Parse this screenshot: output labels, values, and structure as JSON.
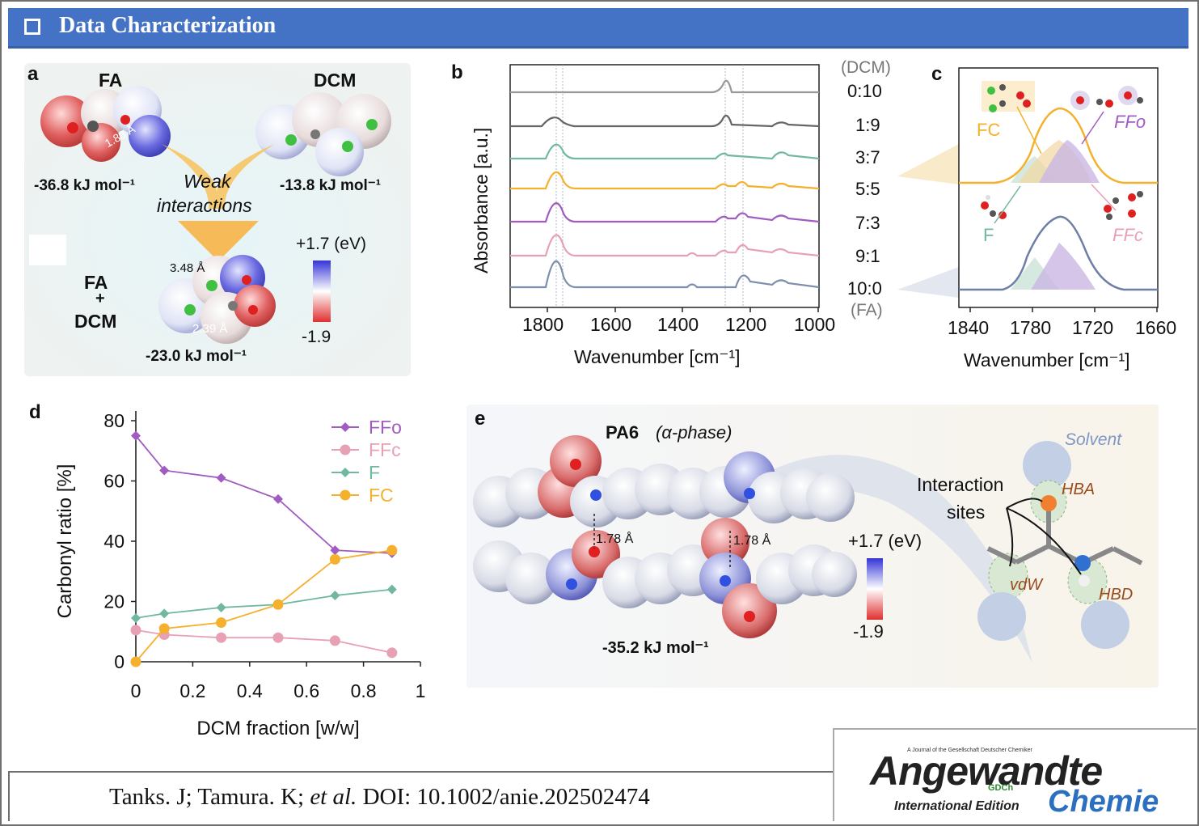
{
  "header": {
    "title": "Data Characterization"
  },
  "panel_a": {
    "label": "a",
    "fa": "FA",
    "dcm": "DCM",
    "fa_energy": "-36.8 kJ mol⁻¹",
    "dcm_energy": "-13.8 kJ mol⁻¹",
    "weak_1": "Weak",
    "weak_2": "interactions",
    "combo_1": "FA",
    "combo_2": "+",
    "combo_3": "DCM",
    "combo_energy": "-23.0 kJ mol⁻¹",
    "dist_1": "1.88 Å",
    "dist_2": "3.48 Å",
    "dist_3": "2.39 Å",
    "scale_top": "+1.7 (eV)",
    "scale_bottom": "-1.9"
  },
  "panel_b": {
    "label": "b",
    "ylabel": "Absorbance [a.u.]",
    "xlabel": "Wavenumber [cm⁻¹]",
    "dcm_note": "(DCM)",
    "fa_note": "(FA)",
    "ratios": [
      "0:10",
      "1:9",
      "3:7",
      "5:5",
      "7:3",
      "9:1",
      "10:0"
    ],
    "xticks": [
      "1800",
      "1600",
      "1400",
      "1200",
      "1000"
    ]
  },
  "panel_c": {
    "label": "c",
    "xlabel": "Wavenumber [cm⁻¹]",
    "xticks": [
      "1840",
      "1780",
      "1720",
      "1660"
    ],
    "fc": "FC",
    "ffo": "FFo",
    "f": "F",
    "ffc": "FFc"
  },
  "panel_d": {
    "label": "d"
  },
  "panel_e": {
    "label": "e",
    "title": "PA6",
    "phase": "(α-phase)",
    "dist_1": "1.78 Å",
    "dist_2": "1.78 Å",
    "energy": "-35.2 kJ mol⁻¹",
    "scale_top": "+1.7 (eV)",
    "scale_bottom": "-1.9",
    "solvent": "Solvent",
    "interaction_1": "Interaction",
    "interaction_2": "sites",
    "hba": "HBA",
    "hbd": "HBD",
    "vdw": "vdW"
  },
  "chart_data": {
    "type": "line",
    "xlabel": "DCM fraction [w/w]",
    "ylabel": "Carbonyl ratio [%]",
    "xlim": [
      0,
      1
    ],
    "ylim": [
      0,
      80
    ],
    "xticks": [
      "0",
      "0.2",
      "0.4",
      "0.6",
      "0.8",
      "1"
    ],
    "yticks": [
      "0",
      "20",
      "40",
      "60",
      "80"
    ],
    "x": [
      0,
      0.1,
      0.3,
      0.5,
      0.7,
      0.9
    ],
    "legend_position": "top-right",
    "series": [
      {
        "name": "FFo",
        "color": "#a05cc0",
        "marker": "diamond",
        "values": [
          75,
          63.5,
          61,
          54,
          37,
          36
        ]
      },
      {
        "name": "FFc",
        "color": "#e8a0b4",
        "marker": "circle",
        "values": [
          10.5,
          9,
          8,
          8,
          7,
          3
        ]
      },
      {
        "name": "F",
        "color": "#72b8a0",
        "marker": "diamond",
        "values": [
          14.5,
          16,
          18,
          19,
          22,
          24
        ]
      },
      {
        "name": "FC",
        "color": "#f5b02e",
        "marker": "circle",
        "values": [
          0,
          11,
          13,
          19,
          34,
          37
        ]
      }
    ]
  },
  "footer": {
    "cite_pre": "Tanks. J; Tamura. K; ",
    "cite_etal": "et al.",
    "cite_post": " DOI: 10.1002/anie.202502474"
  },
  "logo": {
    "tagline": "A Journal of the Gesellschaft Deutscher Chemiker",
    "name": "Angewandte",
    "gdch": "GDCh",
    "edition": "International Edition",
    "chemie": "Chemie"
  }
}
